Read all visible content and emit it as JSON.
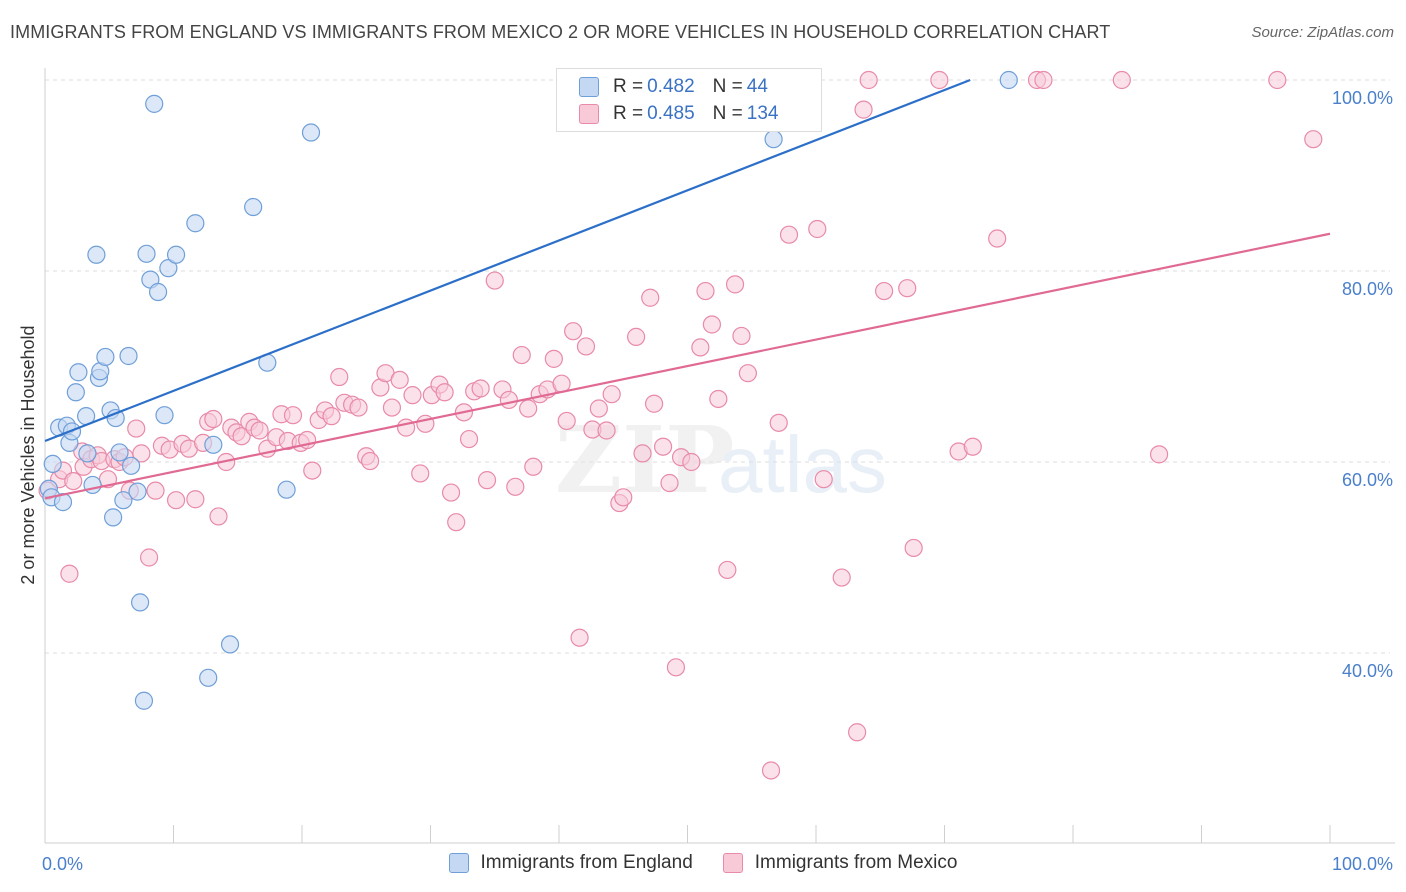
{
  "header": {
    "title": "IMMIGRANTS FROM ENGLAND VS IMMIGRANTS FROM MEXICO 2 OR MORE VEHICLES IN HOUSEHOLD CORRELATION CHART",
    "source": "Source: ZipAtlas.com"
  },
  "legend": {
    "england": {
      "r_label": "R = ",
      "r_value": "0.482",
      "n_label": "N = ",
      "n_value": "44"
    },
    "mexico": {
      "r_label": "R = ",
      "r_value": "0.485",
      "n_label": "N = ",
      "n_value": "134"
    }
  },
  "colors": {
    "england_fill": "#c5d8f3",
    "england_stroke": "#6f9fd8",
    "england_line": "#2c6fc9",
    "mexico_fill": "#f8cad8",
    "mexico_stroke": "#e88aa8",
    "mexico_line": "#e06a94",
    "axis_label": "#4a7fcb"
  },
  "chart_data": {
    "type": "scatter",
    "title": "IMMIGRANTS FROM ENGLAND VS IMMIGRANTS FROM MEXICO 2 OR MORE VEHICLES IN HOUSEHOLD CORRELATION CHART",
    "xlabel": "",
    "ylabel": "2 or more Vehicles in Household",
    "xlim": [
      0,
      100
    ],
    "ylim": [
      20,
      100
    ],
    "x_tick_labels": [
      "0.0%",
      "100.0%"
    ],
    "y_ticks": [
      40,
      60,
      80,
      100
    ],
    "y_tick_labels": [
      "40.0%",
      "60.0%",
      "80.0%",
      "100.0%"
    ],
    "grid": true,
    "legend_position": "bottom",
    "series": [
      {
        "name": "Immigrants from England",
        "trend": [
          [
            0,
            62.2
          ],
          [
            72,
            100
          ]
        ],
        "points": [
          [
            0.3,
            57.2
          ],
          [
            0.5,
            56.3
          ],
          [
            0.6,
            59.8
          ],
          [
            1.1,
            63.6
          ],
          [
            1.4,
            55.8
          ],
          [
            1.7,
            63.8
          ],
          [
            1.9,
            62.0
          ],
          [
            2.1,
            63.2
          ],
          [
            2.4,
            67.3
          ],
          [
            2.6,
            69.4
          ],
          [
            3.2,
            64.8
          ],
          [
            3.3,
            60.9
          ],
          [
            3.7,
            57.6
          ],
          [
            4.0,
            81.7
          ],
          [
            4.2,
            68.8
          ],
          [
            4.3,
            69.5
          ],
          [
            4.7,
            71.0
          ],
          [
            5.1,
            65.4
          ],
          [
            5.3,
            54.2
          ],
          [
            5.5,
            64.6
          ],
          [
            5.8,
            61.0
          ],
          [
            6.1,
            56.0
          ],
          [
            6.5,
            71.1
          ],
          [
            6.7,
            59.6
          ],
          [
            7.2,
            56.9
          ],
          [
            7.4,
            45.3
          ],
          [
            7.7,
            35.0
          ],
          [
            7.9,
            81.8
          ],
          [
            8.2,
            79.1
          ],
          [
            8.5,
            97.5
          ],
          [
            8.8,
            77.8
          ],
          [
            9.3,
            64.9
          ],
          [
            9.6,
            80.3
          ],
          [
            10.2,
            81.7
          ],
          [
            11.7,
            85.0
          ],
          [
            12.7,
            37.4
          ],
          [
            13.1,
            61.8
          ],
          [
            14.4,
            40.9
          ],
          [
            16.2,
            86.7
          ],
          [
            17.3,
            70.4
          ],
          [
            18.8,
            57.1
          ],
          [
            20.7,
            94.5
          ],
          [
            56.7,
            93.8
          ],
          [
            75.0,
            100
          ]
        ]
      },
      {
        "name": "Immigrants from Mexico",
        "trend": [
          [
            0,
            56.2
          ],
          [
            100,
            83.9
          ]
        ],
        "points": [
          [
            0.2,
            57.0
          ],
          [
            1.1,
            58.2
          ],
          [
            1.4,
            59.1
          ],
          [
            1.9,
            48.3
          ],
          [
            2.2,
            58.0
          ],
          [
            2.9,
            61.1
          ],
          [
            3.0,
            59.5
          ],
          [
            3.6,
            60.3
          ],
          [
            4.1,
            60.7
          ],
          [
            4.4,
            60.1
          ],
          [
            4.9,
            58.2
          ],
          [
            5.4,
            60.3
          ],
          [
            5.8,
            60.0
          ],
          [
            6.2,
            60.5
          ],
          [
            6.6,
            57.0
          ],
          [
            7.1,
            63.5
          ],
          [
            7.5,
            60.9
          ],
          [
            8.1,
            50.0
          ],
          [
            8.6,
            57.0
          ],
          [
            9.1,
            61.7
          ],
          [
            9.7,
            61.3
          ],
          [
            10.2,
            56.0
          ],
          [
            10.7,
            61.9
          ],
          [
            11.2,
            61.4
          ],
          [
            11.7,
            56.1
          ],
          [
            12.3,
            62.0
          ],
          [
            12.7,
            64.2
          ],
          [
            13.1,
            64.5
          ],
          [
            13.5,
            54.3
          ],
          [
            14.1,
            60.0
          ],
          [
            14.5,
            63.6
          ],
          [
            14.9,
            63.1
          ],
          [
            15.3,
            62.7
          ],
          [
            15.9,
            64.2
          ],
          [
            16.3,
            63.6
          ],
          [
            16.7,
            63.3
          ],
          [
            17.3,
            61.4
          ],
          [
            18.0,
            62.6
          ],
          [
            18.4,
            65.0
          ],
          [
            18.9,
            62.2
          ],
          [
            19.3,
            64.9
          ],
          [
            19.9,
            62.0
          ],
          [
            20.4,
            62.3
          ],
          [
            20.8,
            59.1
          ],
          [
            21.3,
            64.4
          ],
          [
            21.8,
            65.4
          ],
          [
            22.3,
            64.8
          ],
          [
            22.9,
            68.9
          ],
          [
            23.3,
            66.2
          ],
          [
            23.9,
            66.0
          ],
          [
            24.4,
            65.7
          ],
          [
            25.0,
            60.6
          ],
          [
            25.3,
            60.1
          ],
          [
            26.1,
            67.8
          ],
          [
            26.5,
            69.3
          ],
          [
            27.0,
            65.7
          ],
          [
            27.6,
            68.6
          ],
          [
            28.1,
            63.6
          ],
          [
            28.6,
            67.0
          ],
          [
            29.2,
            58.8
          ],
          [
            29.6,
            64.0
          ],
          [
            30.1,
            67.0
          ],
          [
            30.7,
            68.1
          ],
          [
            31.1,
            67.3
          ],
          [
            31.6,
            56.8
          ],
          [
            32.0,
            53.7
          ],
          [
            32.6,
            65.2
          ],
          [
            33.0,
            62.4
          ],
          [
            33.4,
            67.4
          ],
          [
            33.9,
            67.7
          ],
          [
            34.4,
            58.1
          ],
          [
            35.0,
            79.0
          ],
          [
            35.6,
            67.6
          ],
          [
            36.1,
            66.5
          ],
          [
            36.6,
            57.4
          ],
          [
            37.1,
            71.2
          ],
          [
            37.6,
            65.6
          ],
          [
            38.0,
            59.5
          ],
          [
            38.5,
            67.1
          ],
          [
            39.1,
            67.6
          ],
          [
            39.6,
            70.8
          ],
          [
            40.2,
            68.2
          ],
          [
            40.6,
            64.3
          ],
          [
            41.1,
            73.7
          ],
          [
            41.6,
            41.6
          ],
          [
            42.1,
            72.1
          ],
          [
            42.6,
            63.4
          ],
          [
            43.1,
            65.6
          ],
          [
            43.7,
            63.3
          ],
          [
            44.1,
            67.1
          ],
          [
            44.7,
            55.7
          ],
          [
            45.0,
            56.3
          ],
          [
            46.0,
            73.1
          ],
          [
            46.5,
            60.9
          ],
          [
            47.1,
            77.2
          ],
          [
            47.4,
            66.1
          ],
          [
            48.1,
            61.6
          ],
          [
            48.6,
            57.8
          ],
          [
            49.1,
            38.5
          ],
          [
            49.5,
            60.5
          ],
          [
            50.3,
            60.0
          ],
          [
            51.0,
            72.0
          ],
          [
            51.4,
            77.9
          ],
          [
            51.9,
            74.4
          ],
          [
            52.4,
            66.6
          ],
          [
            53.1,
            48.7
          ],
          [
            53.7,
            78.6
          ],
          [
            54.2,
            73.2
          ],
          [
            54.7,
            69.3
          ],
          [
            55.9,
            100
          ],
          [
            56.5,
            27.7
          ],
          [
            57.1,
            64.1
          ],
          [
            57.9,
            83.8
          ],
          [
            59.1,
            100
          ],
          [
            60.1,
            84.4
          ],
          [
            60.6,
            58.2
          ],
          [
            62.0,
            47.9
          ],
          [
            63.2,
            31.7
          ],
          [
            63.7,
            96.9
          ],
          [
            64.1,
            100
          ],
          [
            65.3,
            77.9
          ],
          [
            67.1,
            78.2
          ],
          [
            67.6,
            51.0
          ],
          [
            69.6,
            100
          ],
          [
            71.1,
            61.1
          ],
          [
            72.2,
            61.6
          ],
          [
            74.1,
            83.4
          ],
          [
            77.2,
            100
          ],
          [
            77.7,
            100
          ],
          [
            83.8,
            100
          ],
          [
            86.7,
            60.8
          ],
          [
            95.9,
            100
          ],
          [
            98.7,
            93.8
          ]
        ]
      }
    ]
  },
  "bottom_legend": {
    "england": "Immigrants from England",
    "mexico": "Immigrants from Mexico"
  }
}
